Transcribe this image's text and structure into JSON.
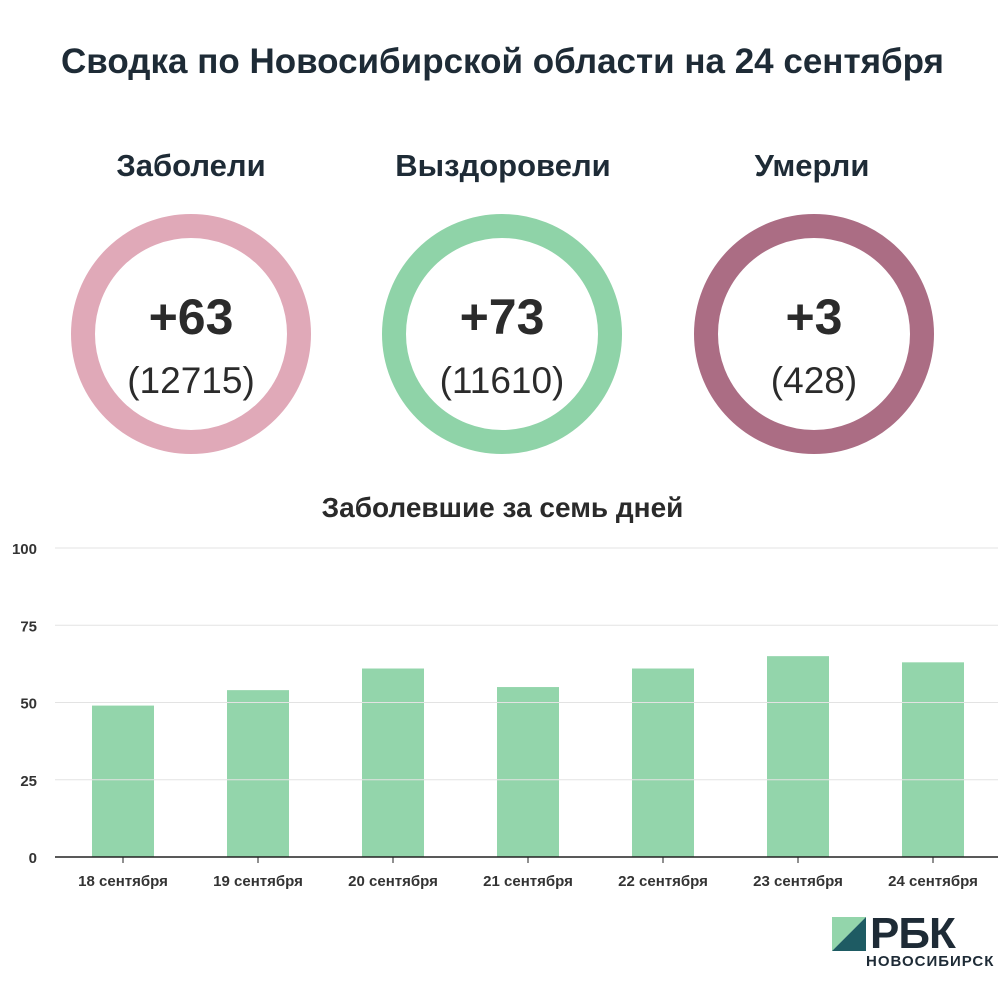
{
  "title": "Сводка по Новосибирской области на 24 сентября",
  "stats": [
    {
      "label": "Заболели",
      "delta": "+63",
      "total": "(12715)",
      "color": "#e0a9b8"
    },
    {
      "label": "Выздоровели",
      "delta": "+73",
      "total": "(11610)",
      "color": "#8fd3a8"
    },
    {
      "label": "Умерли",
      "delta": "+3",
      "total": "(428)",
      "color": "#ab6d84"
    }
  ],
  "chart_data": {
    "type": "bar",
    "title": "Заболевшие за семь дней",
    "categories": [
      "18 сентября",
      "19 сентября",
      "20 сентября",
      "21 сентября",
      "22 сентября",
      "23 сентября",
      "24 сентября"
    ],
    "values": [
      49,
      54,
      61,
      55,
      61,
      65,
      63
    ],
    "yticks": [
      0,
      25,
      50,
      75,
      100
    ],
    "ylim": [
      0,
      100
    ],
    "grid": true,
    "bar_color": "#93d5ab"
  },
  "logo": {
    "text": "РБК",
    "subtext": "НОВОСИБИРСК",
    "mark_color_light": "#93d5ab",
    "mark_color_dark": "#1e5b63"
  }
}
